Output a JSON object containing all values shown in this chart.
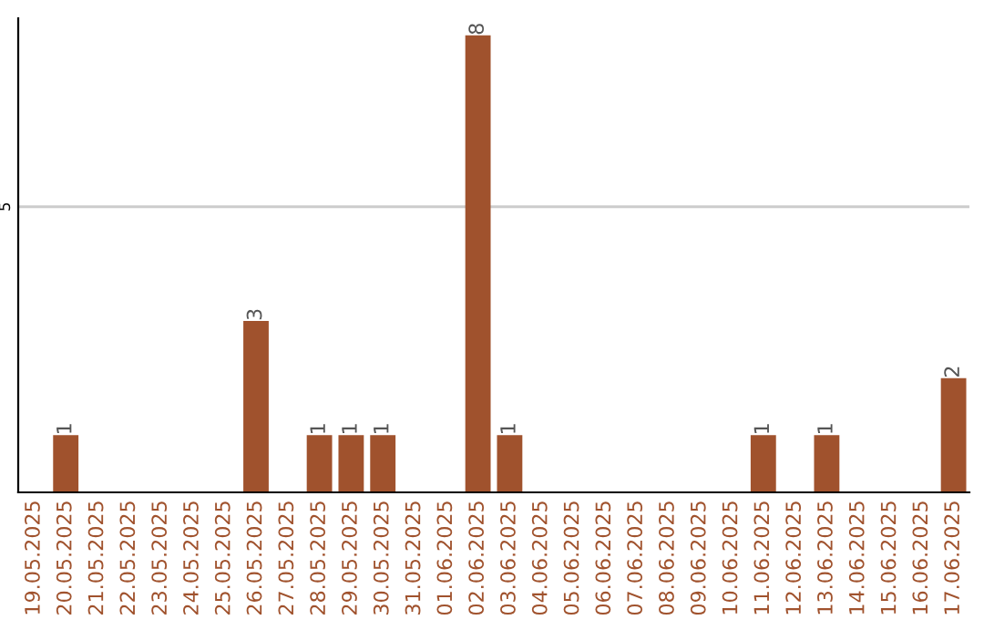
{
  "chart_data": {
    "type": "bar",
    "categories": [
      "19.05.2025",
      "20.05.2025",
      "21.05.2025",
      "22.05.2025",
      "23.05.2025",
      "24.05.2025",
      "25.05.2025",
      "26.05.2025",
      "27.05.2025",
      "28.05.2025",
      "29.05.2025",
      "30.05.2025",
      "31.05.2025",
      "01.06.2025",
      "02.06.2025",
      "03.06.2025",
      "04.06.2025",
      "05.06.2025",
      "06.06.2025",
      "07.06.2025",
      "08.06.2025",
      "09.06.2025",
      "10.06.2025",
      "11.06.2025",
      "12.06.2025",
      "13.06.2025",
      "14.06.2025",
      "15.06.2025",
      "16.06.2025",
      "17.06.2025"
    ],
    "values": [
      0,
      1,
      0,
      0,
      0,
      0,
      0,
      3,
      0,
      1,
      1,
      1,
      0,
      0,
      8,
      1,
      0,
      0,
      0,
      0,
      0,
      0,
      0,
      1,
      0,
      1,
      0,
      0,
      0,
      2
    ],
    "value_labels": [
      null,
      "1",
      null,
      null,
      null,
      null,
      null,
      "3",
      null,
      "1",
      "1",
      "1",
      null,
      null,
      "8",
      "1",
      null,
      null,
      null,
      null,
      null,
      null,
      null,
      "1",
      null,
      "1",
      null,
      null,
      null,
      "2"
    ],
    "color": "#a0522d",
    "ylim": [
      0,
      8.3
    ],
    "yticks": [
      5
    ],
    "grid": "y",
    "legend": false
  }
}
